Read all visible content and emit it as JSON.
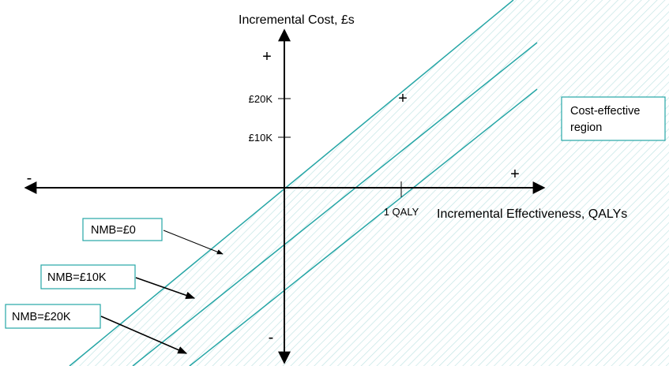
{
  "colors": {
    "accent": "#26a6a6",
    "hatch": "#bfe3e3",
    "axis": "#000000"
  },
  "axes": {
    "y_label": "Incremental Cost, £s",
    "x_label": "Incremental Effectiveness, QALYs",
    "y_ticks": [
      "£20K",
      "£10K"
    ],
    "x_ticks": [
      "1 QALY"
    ],
    "top_sign": "+",
    "bottom_sign": "-",
    "left_sign": "-",
    "right_sign": "+"
  },
  "marker": "+",
  "region_label": [
    "Cost-effective",
    "region"
  ],
  "lines": [
    {
      "label": "NMB=£0"
    },
    {
      "label": "NMB=£10K"
    },
    {
      "label": "NMB=£20K"
    }
  ]
}
